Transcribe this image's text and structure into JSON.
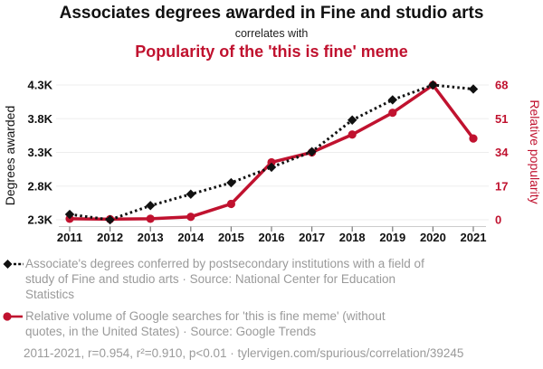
{
  "header": {
    "title": "Associates degrees awarded in Fine and studio arts",
    "connector": "correlates with",
    "subtitle": "Popularity of the 'this is fine' meme"
  },
  "colors": {
    "series-black": "#111111",
    "series-red": "#c0122f",
    "text-gray": "#9a9a9a",
    "grid": "#ededed",
    "axis": "#cccccc"
  },
  "chart_data": {
    "type": "line",
    "x": [
      2011,
      2012,
      2013,
      2014,
      2015,
      2016,
      2017,
      2018,
      2019,
      2020,
      2021
    ],
    "x_ticks": [
      "2011",
      "2012",
      "2013",
      "2014",
      "2015",
      "2016",
      "2017",
      "2018",
      "2019",
      "2020",
      "2021"
    ],
    "series": [
      {
        "name": "Associate's degrees awarded in Fine and studio arts",
        "axis": "left",
        "color": "#111111",
        "style": "dashed",
        "marker": "diamond",
        "values": [
          2380,
          2300,
          2510,
          2680,
          2850,
          3080,
          3310,
          3780,
          4080,
          4300,
          4240
        ]
      },
      {
        "name": "Relative volume of Google searches for 'this is fine meme'",
        "axis": "right",
        "color": "#c0122f",
        "style": "solid",
        "marker": "circle",
        "values": [
          0.5,
          0.3,
          0.5,
          1.5,
          8,
          29,
          34,
          43,
          54,
          68,
          41
        ]
      }
    ],
    "left_axis": {
      "label": "Degrees awarded",
      "ticks": [
        "2.3K",
        "2.8K",
        "3.3K",
        "3.8K",
        "4.3K"
      ],
      "tick_values": [
        2300,
        2800,
        3300,
        3800,
        4300
      ],
      "range": [
        2300,
        4300
      ]
    },
    "right_axis": {
      "label": "Relative popularity",
      "ticks": [
        "0",
        "17",
        "34",
        "51",
        "68"
      ],
      "tick_values": [
        0,
        17,
        34,
        51,
        68
      ],
      "range": [
        0,
        68
      ]
    },
    "grid": "horizontal-only",
    "legend_position": "below"
  },
  "legend": [
    {
      "marker": "black-dashed-diamond",
      "lines": [
        "Associate's degrees conferred by postsecondary institutions with a field of",
        "study of Fine and studio arts · Source: National Center for Education",
        "Statistics"
      ]
    },
    {
      "marker": "red-solid-circle",
      "lines": [
        "Relative volume of Google searches for 'this is fine meme' (without",
        "quotes, in the United States) · Source: Google Trends"
      ]
    }
  ],
  "footer": "2011-2021, r=0.954, r²=0.910, p<0.01 · tylervigen.com/spurious/correlation/39245"
}
